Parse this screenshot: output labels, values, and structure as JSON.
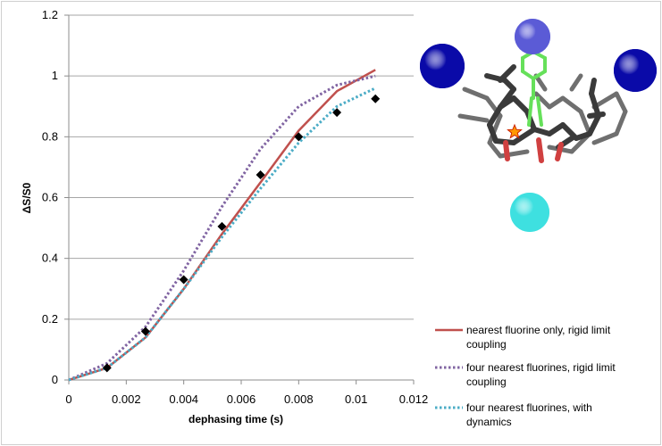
{
  "chart_data": {
    "type": "line",
    "title": "",
    "xlabel": "dephasing time (s)",
    "ylabel": "ΔS/S0",
    "xlim": [
      0,
      0.012
    ],
    "ylim": [
      0,
      1.2
    ],
    "x_ticks": [
      "0",
      "0.002",
      "0.004",
      "0.006",
      "0.008",
      "0.01",
      "0.012"
    ],
    "y_ticks": [
      "0",
      "0.2",
      "0.4",
      "0.6",
      "0.8",
      "1",
      "1.2"
    ],
    "grid": "horizontal",
    "legend_position": "bottom-right",
    "series": [
      {
        "name": "nearest fluorine only, rigid limit coupling",
        "style": "solid",
        "color": "#c0504d",
        "x": [
          0,
          0.00133,
          0.00267,
          0.004,
          0.00533,
          0.00667,
          0.008,
          0.00933,
          0.01067
        ],
        "y": [
          0,
          0.04,
          0.14,
          0.3,
          0.48,
          0.65,
          0.82,
          0.95,
          1.02
        ]
      },
      {
        "name": "four nearest fluorines, rigid limit coupling",
        "style": "dotted",
        "color": "#8064a2",
        "x": [
          0,
          0.00133,
          0.00267,
          0.004,
          0.00533,
          0.00667,
          0.008,
          0.00933,
          0.01067
        ],
        "y": [
          0,
          0.055,
          0.175,
          0.36,
          0.57,
          0.76,
          0.9,
          0.97,
          1.0
        ]
      },
      {
        "name": "four nearest fluorines, with dynamics",
        "style": "dotted",
        "color": "#4bacc6",
        "x": [
          0,
          0.00133,
          0.00267,
          0.004,
          0.00533,
          0.00667,
          0.008,
          0.00933,
          0.01067
        ],
        "y": [
          0,
          0.04,
          0.14,
          0.3,
          0.47,
          0.63,
          0.78,
          0.9,
          0.96
        ]
      },
      {
        "type": "scatter",
        "marker": "diamond",
        "color": "#000000",
        "x": [
          0.00133,
          0.00267,
          0.004,
          0.00533,
          0.00667,
          0.008,
          0.00933,
          0.01067
        ],
        "y": [
          0.04,
          0.16,
          0.33,
          0.505,
          0.675,
          0.8,
          0.88,
          0.925
        ]
      }
    ]
  },
  "legend": {
    "line1_a": "nearest fluorine only, rigid limit",
    "line1_b": "coupling",
    "line2_a": "four nearest fluorines, rigid limit",
    "line2_b": "coupling",
    "line3_a": "four nearest fluorines, with",
    "line3_b": "dynamics"
  },
  "inset": {
    "spheres": [
      {
        "name": "top",
        "color": "#5b5bd6"
      },
      {
        "name": "left",
        "color": "#0a0aa8"
      },
      {
        "name": "right",
        "color": "#0a0aa8"
      },
      {
        "name": "bottom",
        "color": "#3ee0e0"
      }
    ],
    "ring_color": "#66e05a",
    "framework_color": "#3a3a3a",
    "oxygen_color": "#d04040",
    "marker_color": "#ff9900"
  }
}
